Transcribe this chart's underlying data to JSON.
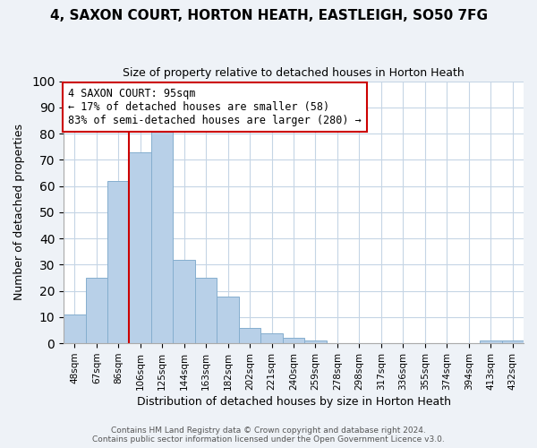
{
  "title": "4, SAXON COURT, HORTON HEATH, EASTLEIGH, SO50 7FG",
  "subtitle": "Size of property relative to detached houses in Horton Heath",
  "xlabel": "Distribution of detached houses by size in Horton Heath",
  "ylabel": "Number of detached properties",
  "footer_line1": "Contains HM Land Registry data © Crown copyright and database right 2024.",
  "footer_line2": "Contains public sector information licensed under the Open Government Licence v3.0.",
  "bar_labels": [
    "48sqm",
    "67sqm",
    "86sqm",
    "106sqm",
    "125sqm",
    "144sqm",
    "163sqm",
    "182sqm",
    "202sqm",
    "221sqm",
    "240sqm",
    "259sqm",
    "278sqm",
    "298sqm",
    "317sqm",
    "336sqm",
    "355sqm",
    "374sqm",
    "394sqm",
    "413sqm",
    "432sqm"
  ],
  "bar_values": [
    11,
    25,
    62,
    73,
    81,
    32,
    25,
    18,
    6,
    4,
    2,
    1,
    0,
    0,
    0,
    0,
    0,
    0,
    0,
    1,
    1
  ],
  "bar_color": "#b8d0e8",
  "bar_edgecolor": "#85aece",
  "vline_color": "#cc0000",
  "annotation_title": "4 SAXON COURT: 95sqm",
  "annotation_line1": "← 17% of detached houses are smaller (58)",
  "annotation_line2": "83% of semi-detached houses are larger (280) →",
  "annotation_box_edgecolor": "#cc0000",
  "ylim": [
    0,
    100
  ],
  "yticks": [
    0,
    10,
    20,
    30,
    40,
    50,
    60,
    70,
    80,
    90,
    100
  ],
  "background_color": "#eef2f7",
  "plot_bg_color": "#ffffff",
  "grid_color": "#c5d5e5"
}
